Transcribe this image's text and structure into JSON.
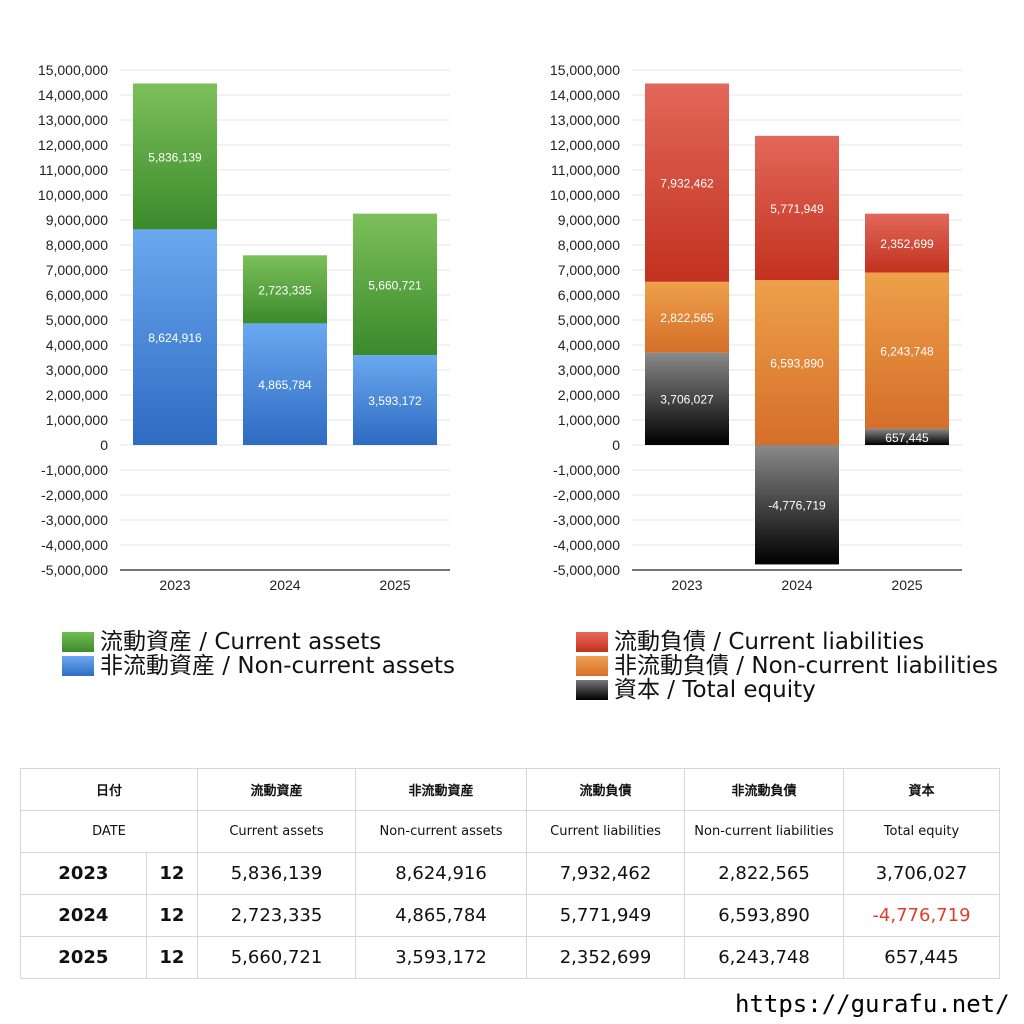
{
  "colors": {
    "current_assets": "#4f9f3c",
    "non_current_assets": "#3d7fd4",
    "current_liabilities": "#d9412c",
    "non_current_liabilities": "#e0822e",
    "total_equity": "#2a2a2a",
    "negative_text": "#d9412c"
  },
  "chart_data": [
    {
      "type": "bar",
      "stacked": true,
      "categories": [
        "2023",
        "2024",
        "2025"
      ],
      "ylim": [
        -5000000,
        15000000
      ],
      "ytick_step": 1000000,
      "grid": true,
      "series": [
        {
          "name": "非流動資産 / Non-current assets",
          "values": [
            8624916,
            4865784,
            3593172
          ],
          "color": "#3d7fd4"
        },
        {
          "name": "流動資産 / Current assets",
          "values": [
            5836139,
            2723335,
            5660721
          ],
          "color": "#4f9f3c"
        }
      ],
      "value_labels": [
        [
          "8,624,916",
          "4,865,784",
          "3,593,172"
        ],
        [
          "5,836,139",
          "2,723,335",
          "5,660,721"
        ]
      ]
    },
    {
      "type": "bar",
      "stacked": true,
      "categories": [
        "2023",
        "2024",
        "2025"
      ],
      "ylim": [
        -5000000,
        15000000
      ],
      "ytick_step": 1000000,
      "grid": true,
      "series": [
        {
          "name": "資本 / Total equity",
          "values": [
            3706027,
            -4776719,
            657445
          ],
          "color": "#2a2a2a"
        },
        {
          "name": "非流動負債 / Non-current liabilities",
          "values": [
            2822565,
            6593890,
            6243748
          ],
          "color": "#e0822e"
        },
        {
          "name": "流動負債 / Current liabilities",
          "values": [
            7932462,
            5771949,
            2352699
          ],
          "color": "#d9412c"
        }
      ],
      "value_labels": [
        [
          "3,706,027",
          "-4,776,719",
          "657,445"
        ],
        [
          "2,822,565",
          "6,593,890",
          "6,243,748"
        ],
        [
          "7,932,462",
          "5,771,949",
          "2,352,699"
        ]
      ]
    }
  ],
  "legend_left": [
    {
      "label": "流動資産 / Current assets",
      "color": "#4f9f3c"
    },
    {
      "label": "非流動資産 / Non-current assets",
      "color": "#3d7fd4"
    }
  ],
  "legend_right": [
    {
      "label": "流動負債 / Current liabilities",
      "color": "#d9412c"
    },
    {
      "label": "非流動負債 / Non-current liabilities",
      "color": "#e0822e"
    },
    {
      "label": "資本 / Total equity",
      "color": "#2a2a2a"
    }
  ],
  "table": {
    "header_jp": [
      "日付",
      "流動資産",
      "非流動資産",
      "流動負債",
      "非流動負債",
      "資本"
    ],
    "header_en": [
      "DATE",
      "Current assets",
      "Non-current assets",
      "Current liabilities",
      "Non-current liabilities",
      "Total equity"
    ],
    "rows": [
      {
        "year": "2023",
        "month": "12",
        "values": [
          "5,836,139",
          "8,624,916",
          "7,932,462",
          "2,822,565",
          "3,706,027"
        ]
      },
      {
        "year": "2024",
        "month": "12",
        "values": [
          "2,723,335",
          "4,865,784",
          "5,771,949",
          "6,593,890",
          "-4,776,719"
        ]
      },
      {
        "year": "2025",
        "month": "12",
        "values": [
          "5,660,721",
          "3,593,172",
          "2,352,699",
          "6,243,748",
          "657,445"
        ]
      }
    ]
  },
  "site_url": "https://gurafu.net/"
}
